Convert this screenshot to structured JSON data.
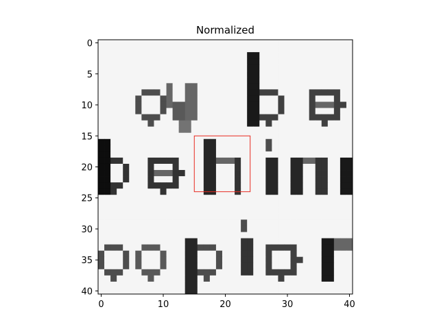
{
  "chart_data": {
    "type": "heatmap",
    "title": "Normalized",
    "xlabel": "",
    "ylabel": "",
    "grid_size": [
      41,
      41
    ],
    "x_ticks": [
      0,
      10,
      20,
      30,
      40
    ],
    "y_ticks": [
      0,
      5,
      10,
      15,
      20,
      25,
      30,
      35,
      40
    ],
    "xlim": [
      -0.5,
      40.5
    ],
    "ylim": [
      40.5,
      -0.5
    ],
    "colormap": "gray",
    "image_description": "grayscale crop of printed text with three lines: cybe / behin / espior",
    "text_lines": [
      "cybe",
      "behin",
      "espior"
    ],
    "highlight_rect": {
      "x0": 15,
      "y0": 15,
      "x1": 24,
      "y1": 24,
      "color": "#e8281e"
    }
  }
}
